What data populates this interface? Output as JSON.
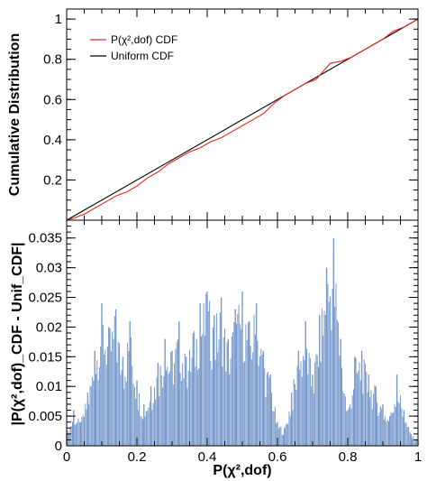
{
  "chart_data": [
    {
      "type": "line",
      "ylabel": "Cumulative Distribution",
      "xlim": [
        0,
        1
      ],
      "ylim": [
        0,
        1.05
      ],
      "x_ticks": [
        "0",
        "0.2",
        "0.4",
        "0.6",
        "0.8",
        "1"
      ],
      "y_ticks": [
        "0.2",
        "0.4",
        "0.6",
        "0.8",
        "1"
      ],
      "legend_position": "top-left",
      "series": [
        {
          "name": "P(χ²,dof) CDF",
          "color": "#e8281e",
          "x": [
            0,
            0.02,
            0.05,
            0.08,
            0.11,
            0.14,
            0.17,
            0.2,
            0.23,
            0.26,
            0.29,
            0.32,
            0.35,
            0.38,
            0.41,
            0.44,
            0.47,
            0.5,
            0.53,
            0.56,
            0.59,
            0.62,
            0.65,
            0.68,
            0.71,
            0.73,
            0.75,
            0.78,
            0.81,
            0.84,
            0.87,
            0.9,
            0.93,
            0.96,
            1
          ],
          "y": [
            0,
            0.01,
            0.03,
            0.06,
            0.09,
            0.12,
            0.14,
            0.17,
            0.21,
            0.24,
            0.28,
            0.31,
            0.34,
            0.36,
            0.39,
            0.41,
            0.44,
            0.47,
            0.5,
            0.53,
            0.58,
            0.62,
            0.65,
            0.68,
            0.7,
            0.74,
            0.78,
            0.79,
            0.81,
            0.84,
            0.87,
            0.9,
            0.94,
            0.96,
            1
          ]
        },
        {
          "name": "Uniform CDF",
          "color": "#000000",
          "x": [
            0,
            1
          ],
          "y": [
            0,
            1
          ]
        }
      ]
    },
    {
      "type": "bar",
      "xlabel": "P(χ²,dof)",
      "ylabel": "|P(χ²,dof)_CDF - Unif_CDF|",
      "xlim": [
        0,
        1
      ],
      "ylim": [
        0,
        0.038
      ],
      "x_ticks": [
        "0",
        "0.2",
        "0.4",
        "0.6",
        "0.8",
        "1"
      ],
      "y_ticks": [
        "0",
        "0.005",
        "0.01",
        "0.015",
        "0.02",
        "0.025",
        "0.03",
        "0.035"
      ],
      "series": [
        {
          "color": "#7799cc",
          "x": [
            0,
            0.02,
            0.04,
            0.06,
            0.08,
            0.1,
            0.12,
            0.14,
            0.16,
            0.18,
            0.2,
            0.22,
            0.24,
            0.26,
            0.28,
            0.3,
            0.32,
            0.34,
            0.36,
            0.38,
            0.4,
            0.42,
            0.44,
            0.46,
            0.48,
            0.5,
            0.52,
            0.54,
            0.56,
            0.58,
            0.6,
            0.62,
            0.64,
            0.66,
            0.68,
            0.7,
            0.72,
            0.74,
            0.76,
            0.78,
            0.8,
            0.82,
            0.84,
            0.86,
            0.88,
            0.9,
            0.92,
            0.94,
            0.96,
            0.98,
            1
          ],
          "y": [
            0.002,
            0.006,
            0.004,
            0.009,
            0.016,
            0.024,
            0.02,
            0.023,
            0.015,
            0.021,
            0.011,
            0.007,
            0.01,
            0.014,
            0.018,
            0.016,
            0.021,
            0.015,
            0.019,
            0.024,
            0.026,
            0.022,
            0.025,
            0.018,
            0.023,
            0.026,
            0.021,
            0.024,
            0.016,
            0.012,
            0.004,
            0.003,
            0.009,
            0.016,
            0.021,
            0.012,
            0.022,
            0.03,
            0.035,
            0.018,
            0.006,
            0.015,
            0.016,
            0.012,
            0.01,
            0.007,
            0.005,
            0.012,
            0.006,
            0.002,
            0.001
          ]
        }
      ]
    }
  ]
}
